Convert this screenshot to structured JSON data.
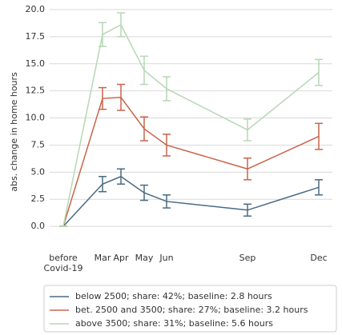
{
  "chart_data": {
    "type": "line",
    "y_label": "abs. change in home hours",
    "categories": [
      "before\nCovid-19",
      "Mar",
      "Apr",
      "May",
      "Jun",
      "Sep",
      "Dec"
    ],
    "ylim": [
      -2.5,
      20
    ],
    "yticks": [
      {
        "value": 0,
        "label": "0.0"
      },
      {
        "value": 2.5,
        "label": "2.5"
      },
      {
        "value": 5,
        "label": "5.0"
      },
      {
        "value": 7.5,
        "label": "7.5"
      },
      {
        "value": 10,
        "label": "10.0"
      },
      {
        "value": 12.5,
        "label": "12.5"
      },
      {
        "value": 15,
        "label": "15.0"
      },
      {
        "value": 17.5,
        "label": "17.5"
      },
      {
        "value": 20,
        "label": "20.0"
      }
    ],
    "grid": true,
    "series": [
      {
        "name": "below 2500; share: 42%; baseline: 2.8 hours",
        "color": "#4a6a82",
        "values": [
          0,
          3.9,
          4.6,
          3.1,
          2.3,
          1.5,
          3.6
        ],
        "errors": [
          0,
          0.7,
          0.7,
          0.7,
          0.6,
          0.55,
          0.7
        ]
      },
      {
        "name": "bet. 2500 and 3500; share: 27%; baseline: 3.2 hours",
        "color": "#c8654a",
        "values": [
          0,
          11.8,
          11.9,
          9.0,
          7.5,
          5.3,
          8.3
        ],
        "errors": [
          0,
          1.0,
          1.2,
          1.1,
          1.0,
          1.0,
          1.2
        ]
      },
      {
        "name": "above 3500; share: 31%; baseline: 5.6 hours",
        "color": "#b6d7b4",
        "values": [
          0,
          17.7,
          18.6,
          14.4,
          12.7,
          8.9,
          14.2
        ],
        "errors": [
          0,
          1.1,
          1.1,
          1.3,
          1.1,
          1.0,
          1.2
        ]
      }
    ]
  }
}
